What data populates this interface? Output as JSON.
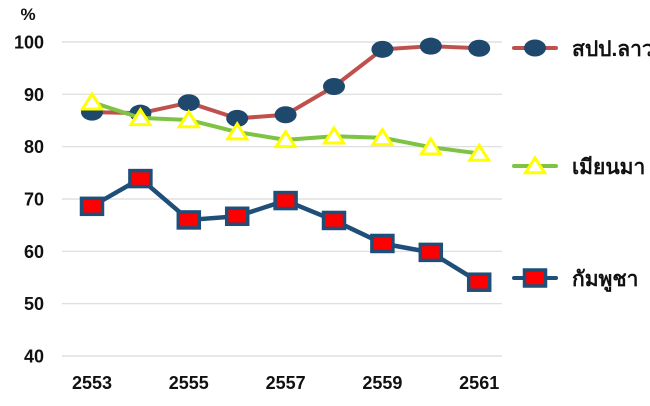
{
  "chart_data": {
    "type": "line",
    "title": "",
    "y_axis_unit": "%",
    "categories": [
      "2553",
      "2554",
      "2555",
      "2556",
      "2557",
      "2558",
      "2559",
      "2560",
      "2561"
    ],
    "x_tick_labels": [
      "2553",
      "2555",
      "2557",
      "2559",
      "2561"
    ],
    "x_tick_label_indices": [
      0,
      2,
      4,
      6,
      8
    ],
    "y_ticks": [
      100,
      90,
      80,
      70,
      60,
      50,
      40
    ],
    "ylim": [
      40,
      100
    ],
    "grid": true,
    "legend_position": "right",
    "colors": {
      "gridline": "#DBDBDB",
      "axis_text": "#111111",
      "background": "#FFFFFF"
    },
    "series": [
      {
        "key": "lao",
        "name": "สปป.ลาว",
        "values": [
          86.6,
          86.4,
          88.4,
          85.4,
          86.1,
          91.5,
          98.6,
          99.2,
          98.8
        ],
        "line_color": "#C0504D",
        "marker": "circle",
        "marker_fill": "#1F486D",
        "marker_stroke": "#1F486D"
      },
      {
        "key": "myanmar",
        "name": "เมียนมา",
        "values": [
          88.5,
          85.5,
          85.1,
          82.8,
          81.3,
          82.0,
          81.7,
          79.9,
          78.7
        ],
        "line_color": "#7EC344",
        "marker": "triangle",
        "marker_fill": "#FFFFFF",
        "marker_stroke": "#FFFF00"
      },
      {
        "key": "cambodia",
        "name": "กัมพูชา",
        "values": [
          68.6,
          73.9,
          66.0,
          66.7,
          69.7,
          65.9,
          61.5,
          59.8,
          54.1
        ],
        "line_color": "#1F4E79",
        "marker": "square",
        "marker_fill": "#FF0000",
        "marker_stroke": "#1F4E79"
      }
    ]
  }
}
